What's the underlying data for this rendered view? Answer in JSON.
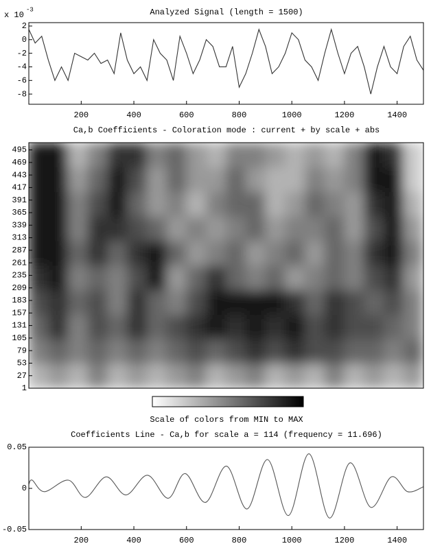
{
  "chart_data": [
    {
      "type": "line",
      "title": "Analyzed Signal  (length = 1500)",
      "ylabel_multiplier": "x 10",
      "ylabel_exponent": "-3",
      "x": [
        1,
        25,
        50,
        75,
        100,
        125,
        150,
        175,
        200,
        225,
        250,
        275,
        300,
        325,
        350,
        375,
        400,
        425,
        450,
        475,
        500,
        525,
        550,
        575,
        600,
        625,
        650,
        675,
        700,
        725,
        750,
        775,
        800,
        825,
        850,
        875,
        900,
        925,
        950,
        975,
        1000,
        1025,
        1050,
        1075,
        1100,
        1125,
        1150,
        1175,
        1200,
        1225,
        1250,
        1275,
        1300,
        1325,
        1350,
        1375,
        1400,
        1425,
        1450,
        1475,
        1500
      ],
      "values": [
        1.5,
        -0.5,
        0.5,
        -3,
        -6,
        -4,
        -6,
        -2,
        -2.5,
        -3,
        -2,
        -3.5,
        -3,
        -5,
        1,
        -3,
        -5,
        -4,
        -6,
        0,
        -2,
        -3,
        -6,
        0.5,
        -2,
        -5,
        -3,
        0,
        -1,
        -4,
        -4,
        -1,
        -7,
        -5,
        -2,
        1.5,
        -1,
        -5,
        -4,
        -2,
        1,
        0,
        -3,
        -4,
        -6,
        -2,
        1.5,
        -2,
        -5,
        -2,
        -1,
        -4,
        -8,
        -4,
        -1,
        -4,
        -5,
        -1,
        0.5,
        -3,
        -4.5
      ],
      "color": "#333333",
      "xlim": [
        1,
        1500
      ],
      "ylim": [
        -9.5,
        2.5
      ],
      "xticks": [
        200,
        400,
        600,
        800,
        1000,
        1200,
        1400
      ],
      "yticks": [
        2,
        0,
        -2,
        -4,
        -6,
        -8
      ]
    },
    {
      "type": "heatmap",
      "title": "Ca,b Coefficients  - Coloration mode : current + by scale + abs",
      "colorbar_label": "Scale of colors from MIN to MAX",
      "xlim": [
        1,
        1500
      ],
      "ylim": [
        1,
        510
      ],
      "yticks": [
        1,
        27,
        53,
        79,
        105,
        131,
        157,
        183,
        209,
        235,
        261,
        287,
        313,
        339,
        365,
        391,
        417,
        443,
        469,
        495
      ],
      "z": [
        [
          0.3,
          0.4,
          0.3,
          0.5,
          0.3,
          0.4,
          0.3,
          0.4,
          0.5,
          0.3,
          0.4,
          0.5,
          0.3,
          0.4,
          0.3,
          0.5,
          0.3,
          0.4,
          0.3,
          0.4
        ],
        [
          0.5,
          0.6,
          0.5,
          0.6,
          0.5,
          0.6,
          0.5,
          0.6,
          0.7,
          0.6,
          0.7,
          0.8,
          0.7,
          0.8,
          0.7,
          0.7,
          0.6,
          0.6,
          0.5,
          0.6
        ],
        [
          0.6,
          0.8,
          0.5,
          0.7,
          0.6,
          0.8,
          0.6,
          0.7,
          0.8,
          0.9,
          0.8,
          0.9,
          0.8,
          0.9,
          0.7,
          0.8,
          0.7,
          0.7,
          0.6,
          0.5
        ],
        [
          0.7,
          0.8,
          0.6,
          0.7,
          0.5,
          0.8,
          0.6,
          0.5,
          0.7,
          0.9,
          0.9,
          0.9,
          0.9,
          0.8,
          0.6,
          0.8,
          0.7,
          0.6,
          0.7,
          0.5
        ],
        [
          0.8,
          0.9,
          0.5,
          0.6,
          0.5,
          0.7,
          0.9,
          0.4,
          0.6,
          0.8,
          0.6,
          0.5,
          0.6,
          0.4,
          0.5,
          0.6,
          0.5,
          0.7,
          0.8,
          0.4
        ],
        [
          0.9,
          0.9,
          0.6,
          0.8,
          0.6,
          0.8,
          0.9,
          0.6,
          0.4,
          0.5,
          0.6,
          0.4,
          0.5,
          0.6,
          0.4,
          0.6,
          0.5,
          0.8,
          0.9,
          0.5
        ],
        [
          0.9,
          0.9,
          0.5,
          0.8,
          0.8,
          0.7,
          0.6,
          0.4,
          0.5,
          0.4,
          0.5,
          0.6,
          0.4,
          0.5,
          0.5,
          0.6,
          0.4,
          0.7,
          0.9,
          0.4
        ],
        [
          0.9,
          0.9,
          0.5,
          0.7,
          0.9,
          0.6,
          0.4,
          0.5,
          0.3,
          0.5,
          0.6,
          0.6,
          0.3,
          0.4,
          0.6,
          0.5,
          0.4,
          0.8,
          0.9,
          0.3
        ],
        [
          0.9,
          0.9,
          0.4,
          0.6,
          0.9,
          0.7,
          0.4,
          0.6,
          0.4,
          0.4,
          0.6,
          0.4,
          0.3,
          0.3,
          0.5,
          0.4,
          0.5,
          0.9,
          0.9,
          0.2
        ],
        [
          0.9,
          0.9,
          0.3,
          0.5,
          0.8,
          0.8,
          0.5,
          0.6,
          0.4,
          0.3,
          0.5,
          0.5,
          0.4,
          0.3,
          0.4,
          0.3,
          0.5,
          0.9,
          0.8,
          0.2
        ]
      ]
    },
    {
      "type": "line",
      "title": "Coefficients Line - Ca,b   for scale a = 114  (frequency =  11.696)",
      "smooth": true,
      "x": [
        1,
        14,
        60,
        151,
        216,
        295,
        370,
        452,
        530,
        595,
        672,
        752,
        830,
        908,
        987,
        1065,
        1143,
        1221,
        1300,
        1378,
        1440,
        1500
      ],
      "values": [
        0.005,
        0.01,
        -0.004,
        0.01,
        -0.011,
        0.014,
        -0.008,
        0.016,
        -0.012,
        0.018,
        -0.017,
        0.027,
        -0.025,
        0.035,
        -0.033,
        0.042,
        -0.036,
        0.031,
        -0.023,
        0.014,
        -0.004,
        0.002
      ],
      "color": "#555555",
      "xlim": [
        1,
        1500
      ],
      "ylim": [
        -0.05,
        0.05
      ],
      "xticks": [
        200,
        400,
        600,
        800,
        1000,
        1200,
        1400
      ],
      "yticks": [
        0.05,
        0,
        -0.05
      ]
    }
  ]
}
